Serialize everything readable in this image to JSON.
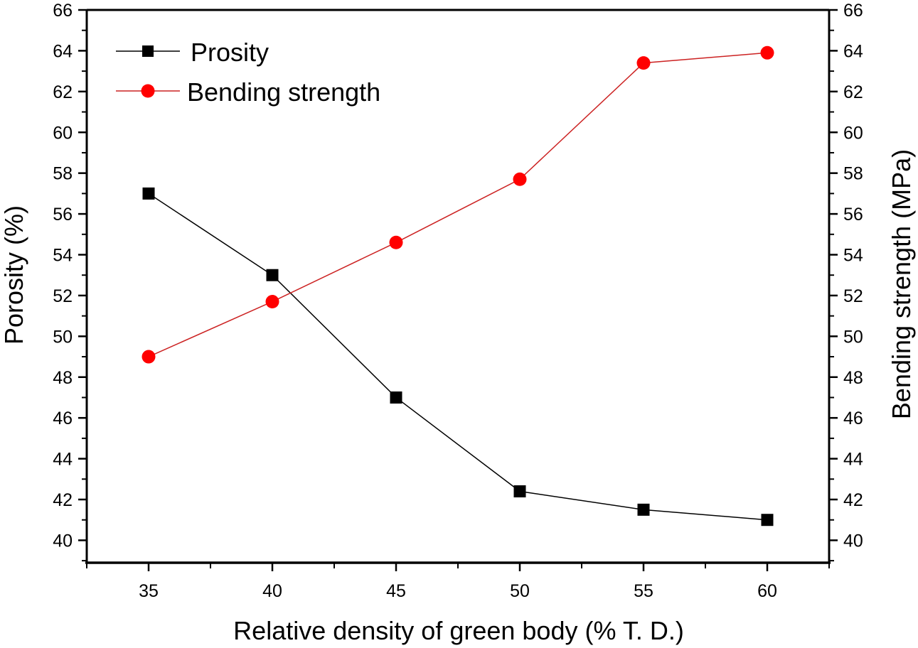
{
  "chart_data": {
    "type": "line",
    "title": "",
    "xlabel": "Relative density of green body (% T. D.)",
    "ylabel_left": "Porosity (%)",
    "ylabel_right": "Bending strength (MPa)",
    "x": [
      35,
      40,
      45,
      50,
      55,
      60
    ],
    "x_ticks": [
      "35",
      "40",
      "45",
      "50",
      "55",
      "60"
    ],
    "xlim": [
      32.5,
      62.5
    ],
    "ylim_left": [
      38.9,
      66
    ],
    "ylim_right": [
      38.9,
      66
    ],
    "y_ticks_left": [
      "40",
      "42",
      "44",
      "46",
      "48",
      "50",
      "52",
      "54",
      "56",
      "58",
      "60",
      "62",
      "64",
      "66"
    ],
    "y_ticks_right": [
      "40",
      "42",
      "44",
      "46",
      "48",
      "50",
      "52",
      "54",
      "56",
      "58",
      "60",
      "62",
      "64",
      "66"
    ],
    "grid": false,
    "legend_position": "top-left",
    "series": [
      {
        "name": "Prosity",
        "axis": "left",
        "marker": "square",
        "color": "#000000",
        "values": [
          57.0,
          53.0,
          47.0,
          42.4,
          41.5,
          41.0
        ]
      },
      {
        "name": "Bending strength",
        "axis": "right",
        "marker": "circle",
        "color": "#ff0000",
        "line_color": "#cc2222",
        "values": [
          49.0,
          51.7,
          54.6,
          57.7,
          63.4,
          63.9
        ]
      }
    ]
  }
}
